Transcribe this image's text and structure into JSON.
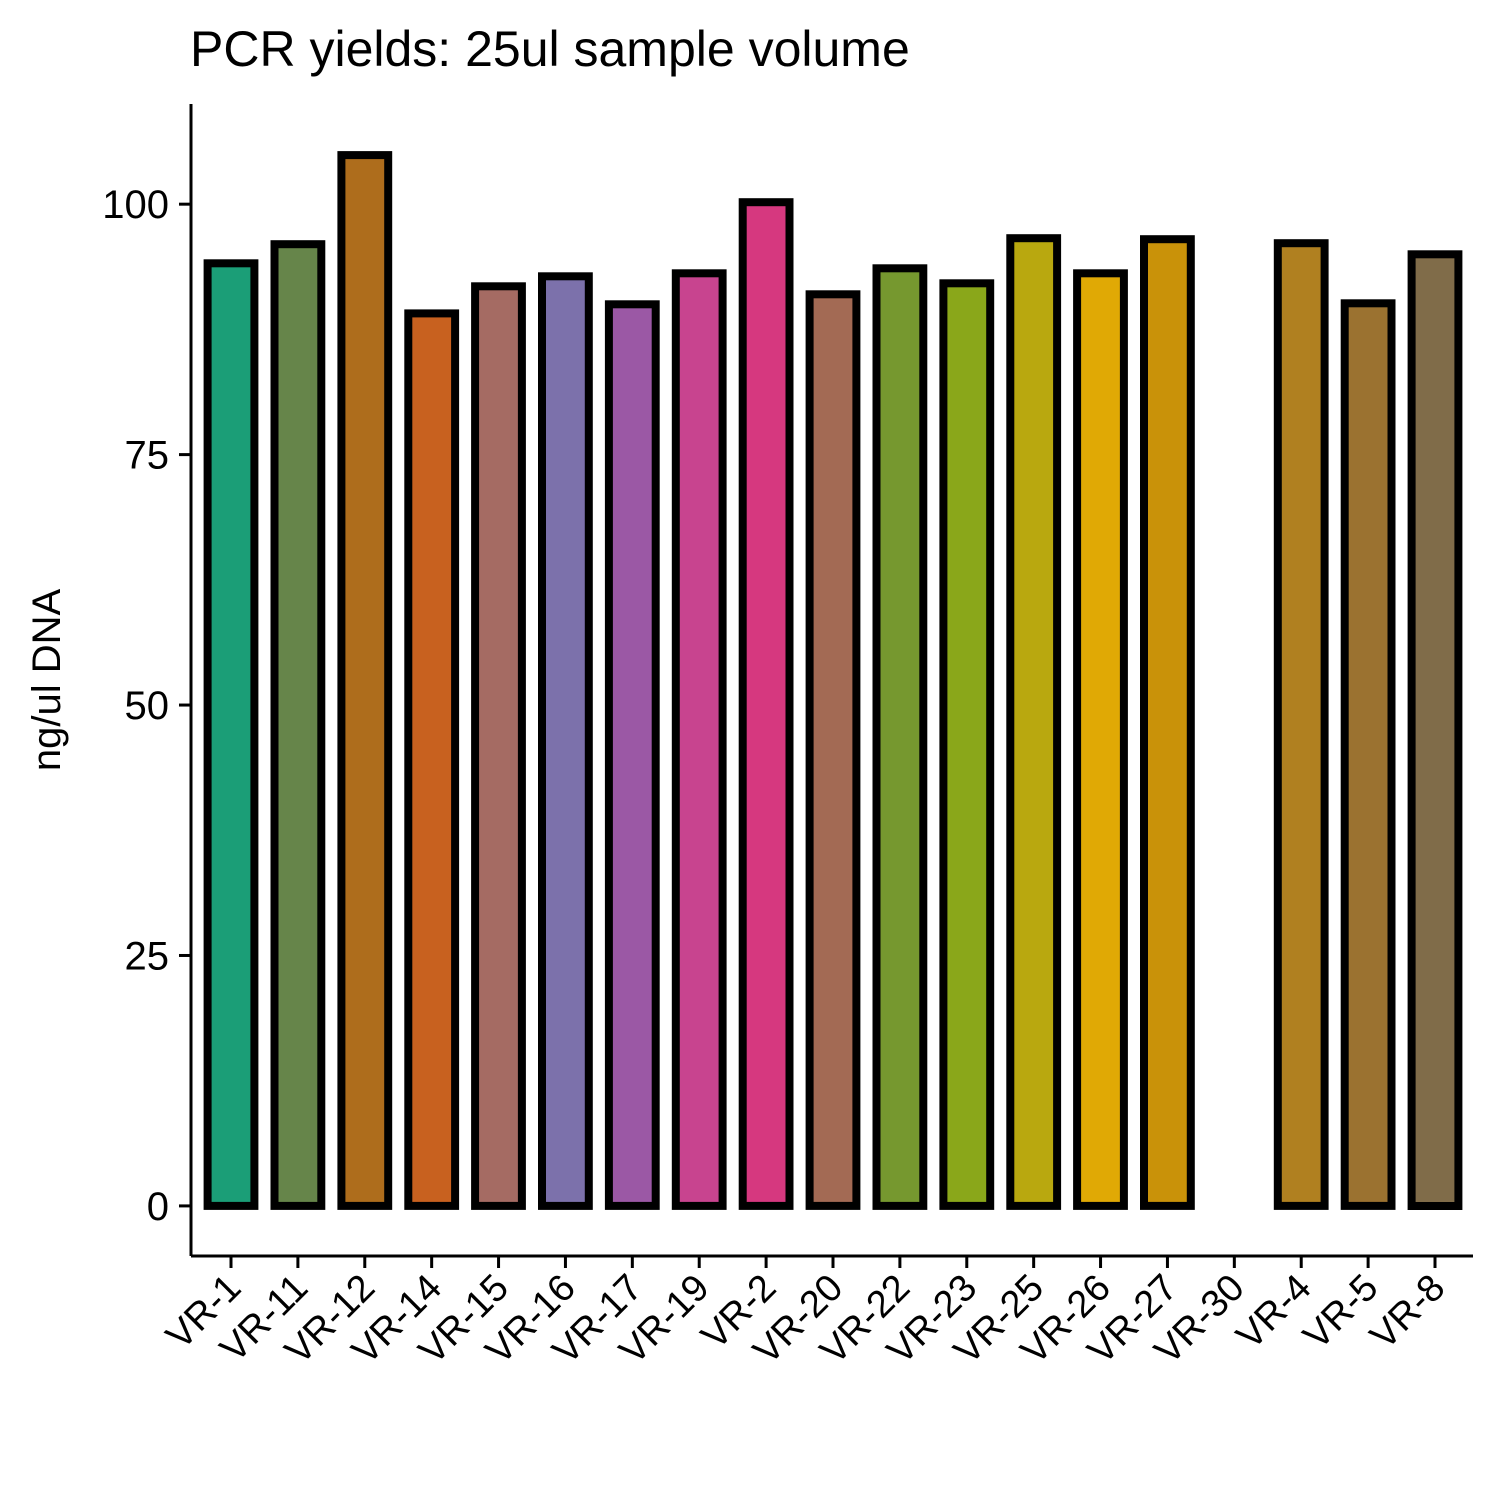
{
  "chart_data": {
    "type": "bar",
    "title": "PCR yields: 25ul sample volume",
    "xlabel": "",
    "ylabel": "ng/ul DNA",
    "ylim": [
      -5,
      110
    ],
    "yticks": [
      0,
      25,
      50,
      75,
      100
    ],
    "grid": false,
    "legend": "none",
    "categories": [
      "VR-1",
      "VR-11",
      "VR-12",
      "VR-14",
      "VR-15",
      "VR-16",
      "VR-17",
      "VR-19",
      "VR-2",
      "VR-20",
      "VR-22",
      "VR-23",
      "VR-25",
      "VR-26",
      "VR-27",
      "VR-30",
      "VR-4",
      "VR-5",
      "VR-8"
    ],
    "values": [
      94.1,
      96.0,
      104.9,
      89.1,
      91.8,
      92.8,
      90.0,
      93.1,
      100.2,
      91.0,
      93.6,
      92.1,
      96.6,
      93.1,
      96.5,
      null,
      96.1,
      90.1,
      95.0
    ],
    "colors": [
      "#1b9e77",
      "#66854a",
      "#ae6d1c",
      "#c8611f",
      "#a56b63",
      "#7c71ab",
      "#9b58a5",
      "#c8448f",
      "#d6387f",
      "#a36a54",
      "#76982f",
      "#8aa71a",
      "#b9a80f",
      "#e0a905",
      "#c99209",
      "#a38b28",
      "#b08020",
      "#9b7230",
      "#806c49"
    ],
    "bar_outline": "#000000"
  }
}
